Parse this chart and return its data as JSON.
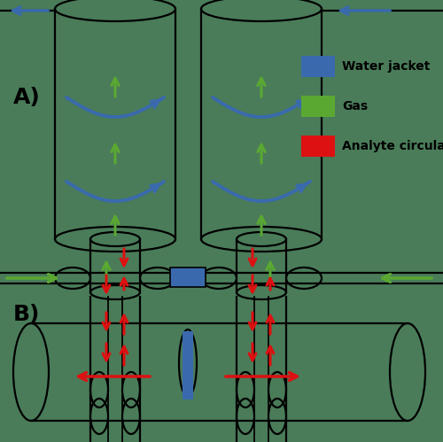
{
  "bg_color": "#4a7c59",
  "line_color": "black",
  "blue_color": "#3a6aad",
  "green_color": "#5aa832",
  "red_color": "#dd1111",
  "figsize": [
    5.0,
    4.99
  ],
  "dpi": 100,
  "title_A": "A)",
  "title_B": "B)",
  "legend_items": [
    {
      "label": "Water jacket",
      "color": "#3a6aad"
    },
    {
      "label": "Gas",
      "color": "#5aa832"
    },
    {
      "label": "Analyte circulation",
      "color": "#dd1111"
    }
  ]
}
